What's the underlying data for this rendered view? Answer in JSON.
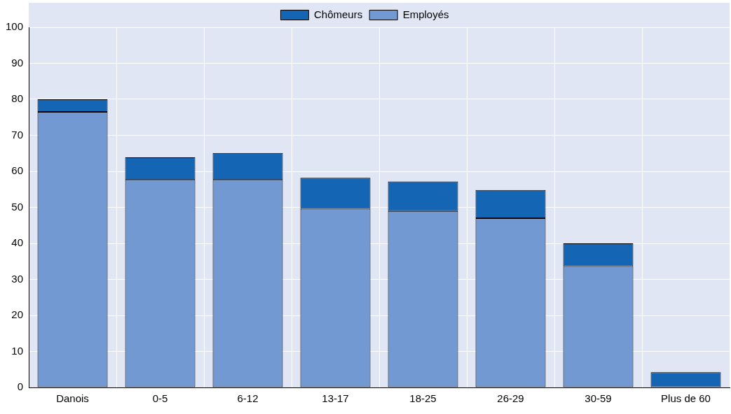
{
  "chart_data": {
    "type": "bar",
    "stacked": true,
    "categories": [
      "Danois",
      "0-5",
      "6-12",
      "13-17",
      "18-25",
      "26-29",
      "30-59",
      "Plus de 60"
    ],
    "series": [
      {
        "name": "Employés",
        "color": "#7399d2",
        "values": [
          76.5,
          57.6,
          57.6,
          49.6,
          49,
          47,
          33.7,
          0
        ]
      },
      {
        "name": "Chômeurs",
        "color": "#1565b5",
        "values": [
          3.5,
          6.3,
          7.5,
          8.6,
          8.2,
          7.8,
          6.3,
          4.2
        ]
      }
    ],
    "ylim": [
      0,
      100
    ],
    "yticks": [
      0,
      10,
      20,
      30,
      40,
      50,
      60,
      70,
      80,
      90,
      100
    ],
    "grid": true,
    "legend": "top"
  }
}
